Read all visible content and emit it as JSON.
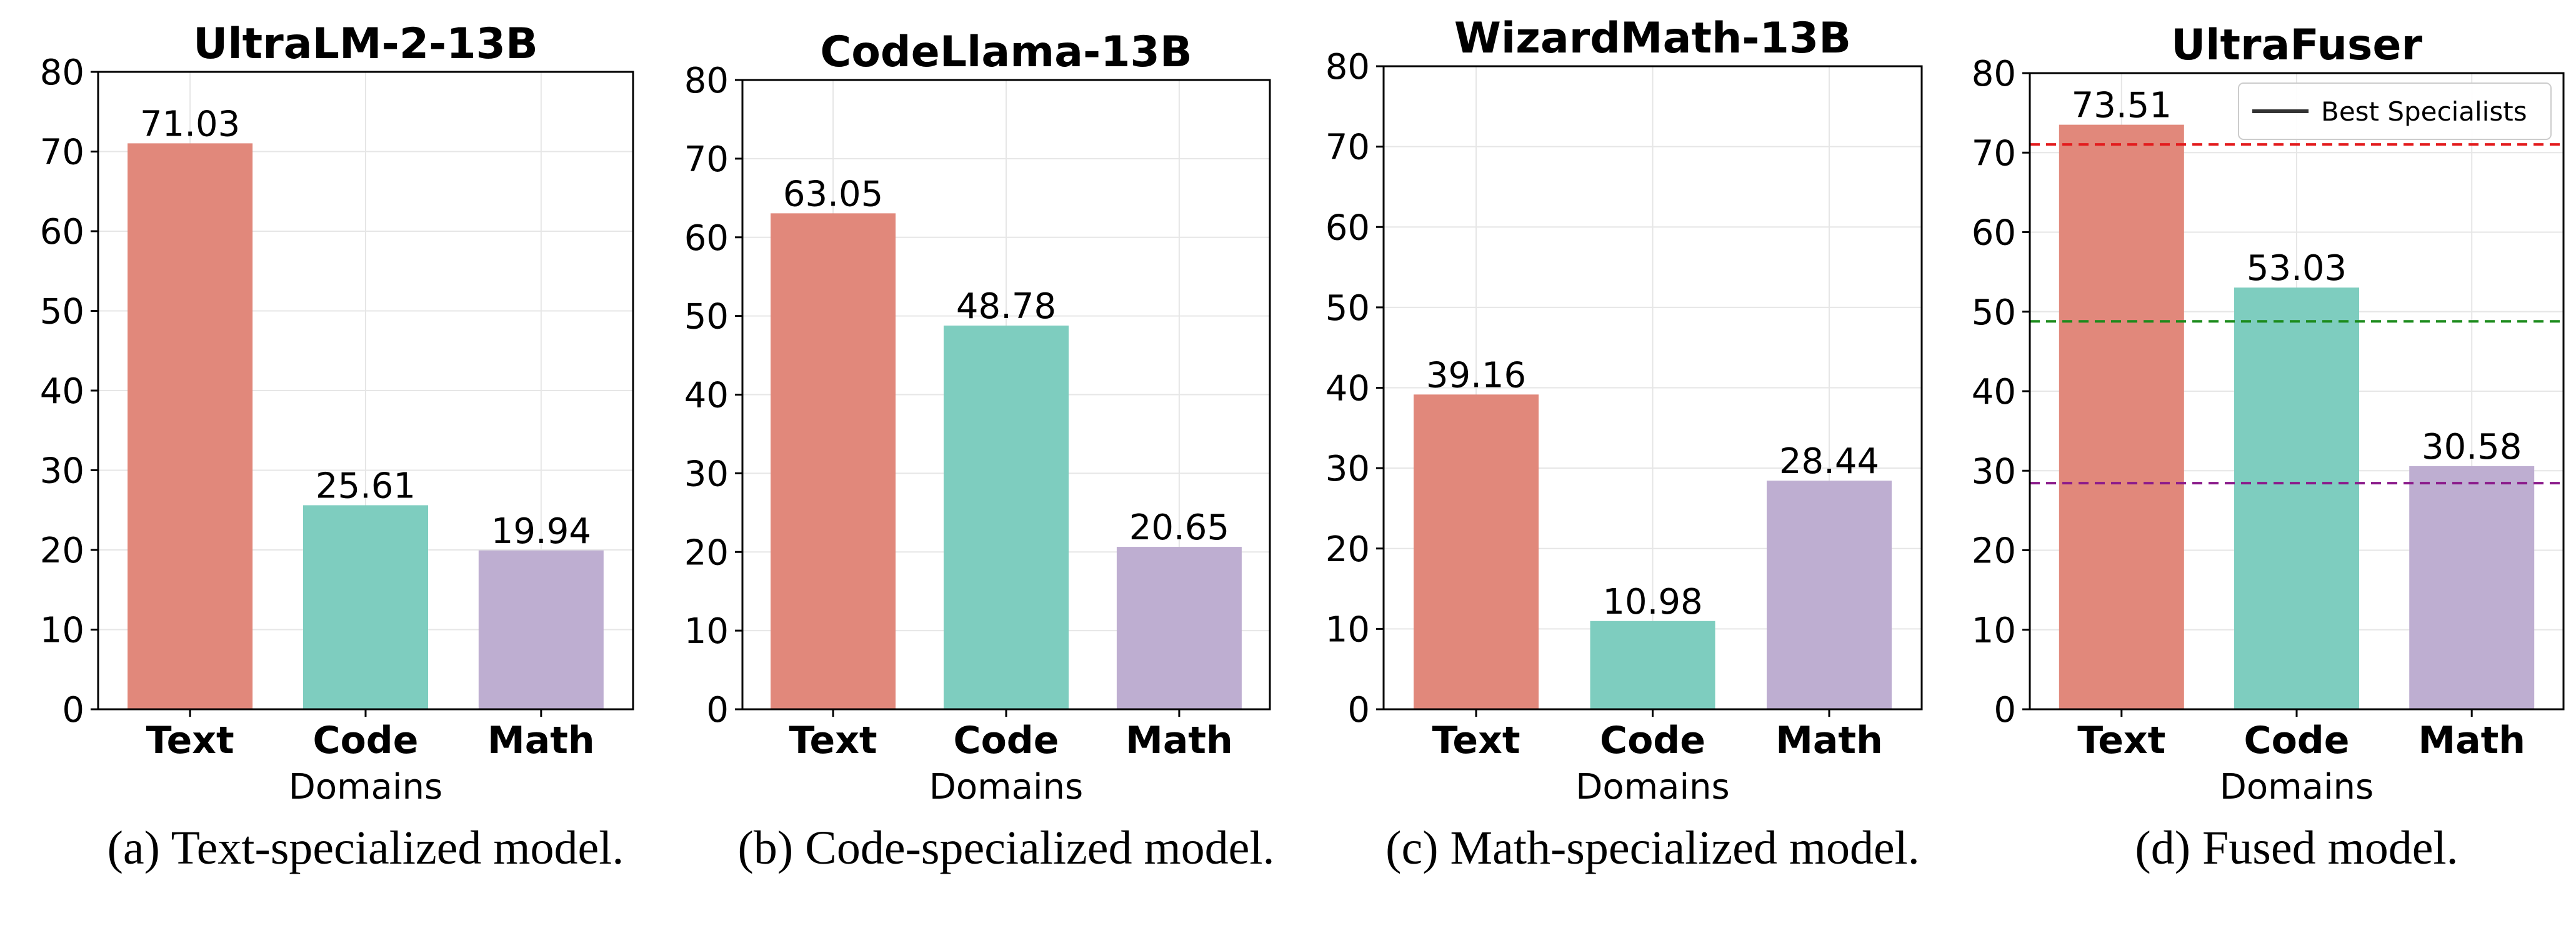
{
  "chart_data": [
    {
      "type": "bar",
      "title": "UltraLM-2-13B",
      "caption": "(a) Text-specialized model.",
      "categories": [
        "Text",
        "Code",
        "Math"
      ],
      "values": [
        71.03,
        25.61,
        19.94
      ],
      "value_labels": [
        "71.03",
        "25.61",
        "19.94"
      ],
      "colors": [
        "#e1887b",
        "#7ecdbf",
        "#beaed1"
      ],
      "xlabel": "Domains",
      "ylabel": "",
      "ylim": [
        0,
        80
      ],
      "yticks": [
        "0",
        "10",
        "20",
        "30",
        "40",
        "50",
        "60",
        "70",
        "80"
      ],
      "grid": true
    },
    {
      "type": "bar",
      "title": "CodeLlama-13B",
      "caption": "(b) Code-specialized model.",
      "categories": [
        "Text",
        "Code",
        "Math"
      ],
      "values": [
        63.05,
        48.78,
        20.65
      ],
      "value_labels": [
        "63.05",
        "48.78",
        "20.65"
      ],
      "colors": [
        "#e1887b",
        "#7ecdbf",
        "#beaed1"
      ],
      "xlabel": "Domains",
      "ylabel": "",
      "ylim": [
        0,
        80
      ],
      "yticks": [
        "0",
        "10",
        "20",
        "30",
        "40",
        "50",
        "60",
        "70",
        "80"
      ],
      "grid": true
    },
    {
      "type": "bar",
      "title": "WizardMath-13B",
      "caption": "(c) Math-specialized model.",
      "categories": [
        "Text",
        "Code",
        "Math"
      ],
      "values": [
        39.16,
        10.98,
        28.44
      ],
      "value_labels": [
        "39.16",
        "10.98",
        "28.44"
      ],
      "colors": [
        "#e1887b",
        "#7ecdbf",
        "#beaed1"
      ],
      "xlabel": "Domains",
      "ylabel": "",
      "ylim": [
        0,
        80
      ],
      "yticks": [
        "0",
        "10",
        "20",
        "30",
        "40",
        "50",
        "60",
        "70",
        "80"
      ],
      "grid": true
    },
    {
      "type": "bar",
      "title": "UltraFuser",
      "caption": "(d) Fused model.",
      "categories": [
        "Text",
        "Code",
        "Math"
      ],
      "values": [
        73.51,
        53.03,
        30.58
      ],
      "value_labels": [
        "73.51",
        "53.03",
        "30.58"
      ],
      "colors": [
        "#e1887b",
        "#7ecdbf",
        "#beaed1"
      ],
      "xlabel": "Domains",
      "ylabel": "",
      "ylim": [
        0,
        80
      ],
      "yticks": [
        "0",
        "10",
        "20",
        "30",
        "40",
        "50",
        "60",
        "70",
        "80"
      ],
      "grid": true,
      "reference_lines": [
        {
          "value": 71.03,
          "color": "#e31a1c"
        },
        {
          "value": 48.78,
          "color": "#1a8a1a"
        },
        {
          "value": 28.44,
          "color": "#8b1a8b"
        }
      ],
      "legend": {
        "label": "Best Specialists",
        "position": "top-right",
        "line_color": "#333333"
      }
    }
  ]
}
